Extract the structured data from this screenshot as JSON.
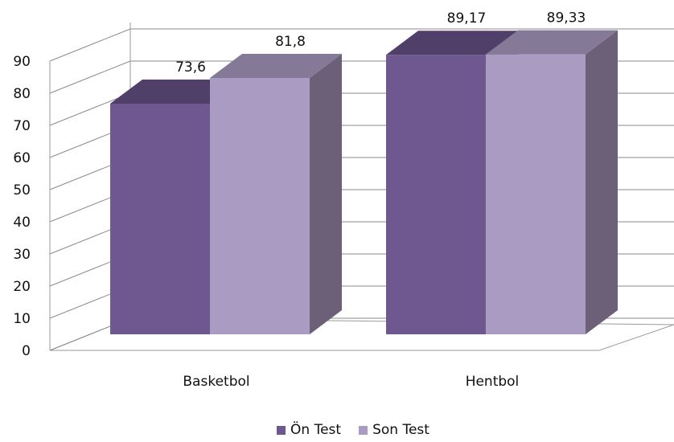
{
  "chart_data": {
    "type": "bar",
    "title": "",
    "xlabel": "",
    "ylabel": "",
    "categories": [
      "Basketbol",
      "Hentbol"
    ],
    "series": [
      {
        "name": "Ön Test",
        "values": [
          73.6,
          89.17
        ],
        "labels": [
          "73,6",
          "89,17"
        ],
        "color": "#6f5790"
      },
      {
        "name": "Son Test",
        "values": [
          81.8,
          89.33
        ],
        "labels": [
          "81,8",
          "89,33"
        ],
        "color": "#a99bc1"
      }
    ],
    "ylim": [
      0,
      90
    ],
    "yticks": [
      0,
      10,
      20,
      30,
      40,
      50,
      60,
      70,
      80,
      90
    ],
    "grid": true,
    "three_d": true,
    "legend": "bottom"
  }
}
